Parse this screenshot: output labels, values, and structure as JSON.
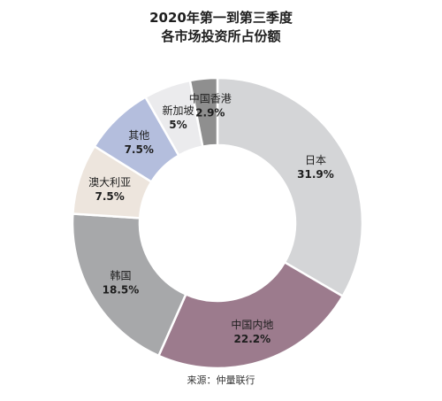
{
  "chart_data": {
    "type": "pie",
    "title": [
      "2020年第一到第三季度",
      "各市场投资所占份额"
    ],
    "donut": true,
    "slices": [
      {
        "label": "日本",
        "value_label": "31.9%",
        "value": 31.9,
        "color": "#d4d5d7"
      },
      {
        "label": "中国内地",
        "value_label": "22.2%",
        "value": 22.2,
        "color": "#9c7b8d"
      },
      {
        "label": "韩国",
        "value_label": "18.5%",
        "value": 18.5,
        "color": "#a7a8aa"
      },
      {
        "label": "澳大利亚",
        "value_label": "7.5%",
        "value": 7.5,
        "color": "#ede5dd"
      },
      {
        "label": "其他",
        "value_label": "7.5%",
        "value": 7.5,
        "color": "#b4bedd"
      },
      {
        "label": "新加坡",
        "value_label": "5%",
        "value": 5.0,
        "color": "#ebebed"
      },
      {
        "label": "中国香港",
        "value_label": "2.9%",
        "value": 2.9,
        "color": "#8f8f8f"
      }
    ]
  },
  "source": "来源：仲量联行"
}
